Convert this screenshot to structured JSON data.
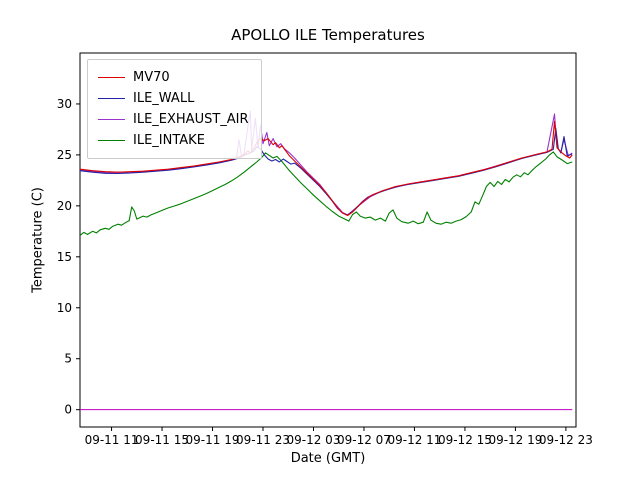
{
  "chart_data": {
    "type": "line",
    "title": "APOLLO ILE Temperatures",
    "xlabel": "Date (GMT)",
    "ylabel": "Temperature (C)",
    "x_axis": {
      "tick_labels": [
        "09-11 11",
        "09-11 15",
        "09-11 19",
        "09-11 23",
        "09-12 03",
        "09-12 07",
        "09-12 11",
        "09-12 15",
        "09-12 19",
        "09-12 23"
      ],
      "tick_hours": [
        2.5,
        6.5,
        10.5,
        14.5,
        18.5,
        22.5,
        26.5,
        30.5,
        34.5,
        38.5
      ],
      "lim": [
        0,
        39.3
      ]
    },
    "y_axis": {
      "ticks": [
        0,
        5,
        10,
        15,
        20,
        25,
        30
      ],
      "lim": [
        -1.7,
        35.0
      ]
    },
    "legend": {
      "position": "upper left",
      "entries": [
        "MV70",
        "ILE_WALL",
        "ILE_EXHAUST_AIR",
        "ILE_INTAKE"
      ]
    },
    "grid": false,
    "zero_line": {
      "y": 0,
      "color": "#c000c0"
    },
    "series": [
      {
        "name": "MV70",
        "color": "#dd0000",
        "points": [
          [
            0,
            23.6
          ],
          [
            1,
            23.45
          ],
          [
            2,
            23.35
          ],
          [
            3,
            23.3
          ],
          [
            4,
            23.35
          ],
          [
            5,
            23.4
          ],
          [
            6,
            23.5
          ],
          [
            7,
            23.6
          ],
          [
            8,
            23.75
          ],
          [
            9,
            23.9
          ],
          [
            10,
            24.1
          ],
          [
            11,
            24.3
          ],
          [
            12,
            24.55
          ],
          [
            12.6,
            24.8
          ],
          [
            13,
            25.0
          ],
          [
            13.3,
            25.4
          ],
          [
            13.5,
            25.2
          ],
          [
            13.8,
            25.7
          ],
          [
            14,
            26.2
          ],
          [
            14.3,
            26.6
          ],
          [
            14.6,
            26.4
          ],
          [
            14.9,
            26.6
          ],
          [
            15.1,
            26.3
          ],
          [
            15.3,
            26.0
          ],
          [
            15.5,
            26.2
          ],
          [
            15.8,
            25.7
          ],
          [
            16,
            25.9
          ],
          [
            16.3,
            25.4
          ],
          [
            16.6,
            24.9
          ],
          [
            17,
            24.4
          ],
          [
            17.5,
            23.8
          ],
          [
            18,
            23.2
          ],
          [
            18.5,
            22.6
          ],
          [
            19,
            22.0
          ],
          [
            19.5,
            21.3
          ],
          [
            20,
            20.5
          ],
          [
            20.4,
            19.8
          ],
          [
            20.8,
            19.3
          ],
          [
            21.2,
            19.05
          ],
          [
            21.6,
            19.4
          ],
          [
            22,
            19.9
          ],
          [
            22.4,
            20.4
          ],
          [
            22.8,
            20.8
          ],
          [
            23.2,
            21.1
          ],
          [
            24,
            21.5
          ],
          [
            25,
            21.9
          ],
          [
            26,
            22.15
          ],
          [
            27,
            22.35
          ],
          [
            28,
            22.55
          ],
          [
            29,
            22.75
          ],
          [
            30,
            22.95
          ],
          [
            31,
            23.25
          ],
          [
            32,
            23.55
          ],
          [
            33,
            23.9
          ],
          [
            34,
            24.3
          ],
          [
            35,
            24.7
          ],
          [
            36,
            25.0
          ],
          [
            37,
            25.3
          ],
          [
            37.4,
            25.55
          ],
          [
            37.6,
            28.3
          ],
          [
            37.8,
            25.7
          ],
          [
            38.1,
            25.3
          ],
          [
            38.5,
            24.9
          ],
          [
            38.8,
            24.7
          ],
          [
            39,
            25.0
          ]
        ]
      },
      {
        "name": "ILE_WALL",
        "color": "#2222aa",
        "points": [
          [
            0,
            23.45
          ],
          [
            1,
            23.3
          ],
          [
            2,
            23.2
          ],
          [
            3,
            23.18
          ],
          [
            4,
            23.22
          ],
          [
            5,
            23.3
          ],
          [
            6,
            23.4
          ],
          [
            7,
            23.5
          ],
          [
            8,
            23.65
          ],
          [
            9,
            23.82
          ],
          [
            10,
            24.0
          ],
          [
            11,
            24.22
          ],
          [
            12,
            24.48
          ],
          [
            12.6,
            24.7
          ],
          [
            13,
            24.95
          ],
          [
            13.4,
            25.15
          ],
          [
            13.8,
            25.4
          ],
          [
            14,
            25.8
          ],
          [
            14.3,
            25.6
          ],
          [
            14.6,
            25.0
          ],
          [
            14.9,
            24.6
          ],
          [
            15.2,
            24.4
          ],
          [
            15.5,
            24.55
          ],
          [
            15.8,
            24.3
          ],
          [
            16.1,
            24.6
          ],
          [
            16.4,
            24.35
          ],
          [
            16.7,
            24.1
          ],
          [
            17,
            24.2
          ],
          [
            17.5,
            23.7
          ],
          [
            18,
            23.1
          ],
          [
            18.5,
            22.5
          ],
          [
            19,
            21.9
          ],
          [
            19.5,
            21.2
          ],
          [
            20,
            20.45
          ],
          [
            20.4,
            19.75
          ],
          [
            20.8,
            19.3
          ],
          [
            21.2,
            19.1
          ],
          [
            21.6,
            19.45
          ],
          [
            22,
            19.95
          ],
          [
            22.4,
            20.45
          ],
          [
            22.8,
            20.85
          ],
          [
            23.2,
            21.1
          ],
          [
            24,
            21.45
          ],
          [
            25,
            21.85
          ],
          [
            26,
            22.1
          ],
          [
            27,
            22.3
          ],
          [
            28,
            22.5
          ],
          [
            29,
            22.7
          ],
          [
            30,
            22.9
          ],
          [
            31,
            23.2
          ],
          [
            32,
            23.5
          ],
          [
            33,
            23.85
          ],
          [
            34,
            24.25
          ],
          [
            35,
            24.65
          ],
          [
            36,
            24.95
          ],
          [
            37,
            25.25
          ],
          [
            37.5,
            25.55
          ],
          [
            37.7,
            27.6
          ],
          [
            37.9,
            25.6
          ],
          [
            38.1,
            25.2
          ],
          [
            38.35,
            26.8
          ],
          [
            38.6,
            24.9
          ],
          [
            39,
            25.1
          ]
        ]
      },
      {
        "name": "ILE_EXHAUST_AIR",
        "color": "#9932cc",
        "points": [
          [
            0,
            23.5
          ],
          [
            2,
            23.28
          ],
          [
            4,
            23.3
          ],
          [
            6,
            23.45
          ],
          [
            8,
            23.7
          ],
          [
            10,
            24.05
          ],
          [
            12,
            24.5
          ],
          [
            12.4,
            24.7
          ],
          [
            12.6,
            26.5
          ],
          [
            12.8,
            24.9
          ],
          [
            13,
            25.1
          ],
          [
            13.3,
            27.8
          ],
          [
            13.5,
            29.3
          ],
          [
            13.6,
            25.5
          ],
          [
            13.9,
            28.6
          ],
          [
            14.1,
            25.7
          ],
          [
            14.3,
            27.9
          ],
          [
            14.5,
            26.1
          ],
          [
            14.8,
            27.2
          ],
          [
            15,
            25.9
          ],
          [
            15.3,
            26.6
          ],
          [
            15.6,
            25.8
          ],
          [
            15.9,
            26.1
          ],
          [
            16.2,
            25.6
          ],
          [
            16.6,
            25.2
          ],
          [
            17,
            24.7
          ],
          [
            17.5,
            24.0
          ],
          [
            18,
            23.3
          ],
          [
            19,
            22.1
          ],
          [
            20,
            20.5
          ],
          [
            20.8,
            19.35
          ],
          [
            21.2,
            19.1
          ],
          [
            22,
            19.95
          ],
          [
            23,
            20.9
          ],
          [
            24,
            21.5
          ],
          [
            26,
            22.15
          ],
          [
            28,
            22.55
          ],
          [
            30,
            22.95
          ],
          [
            32,
            23.55
          ],
          [
            34,
            24.3
          ],
          [
            36,
            25.0
          ],
          [
            37,
            25.3
          ],
          [
            37.6,
            29.0
          ],
          [
            37.8,
            25.7
          ],
          [
            38.1,
            25.3
          ],
          [
            38.35,
            26.5
          ],
          [
            38.7,
            24.9
          ],
          [
            39,
            25.2
          ]
        ]
      },
      {
        "name": "ILE_INTAKE",
        "color": "#008000",
        "points": [
          [
            0,
            17.1
          ],
          [
            0.3,
            17.4
          ],
          [
            0.6,
            17.2
          ],
          [
            1,
            17.5
          ],
          [
            1.3,
            17.35
          ],
          [
            1.6,
            17.65
          ],
          [
            2,
            17.8
          ],
          [
            2.3,
            17.7
          ],
          [
            2.6,
            18.0
          ],
          [
            3,
            18.2
          ],
          [
            3.3,
            18.1
          ],
          [
            3.6,
            18.35
          ],
          [
            3.9,
            18.55
          ],
          [
            4.1,
            19.9
          ],
          [
            4.3,
            19.5
          ],
          [
            4.5,
            18.7
          ],
          [
            5,
            19.0
          ],
          [
            5.3,
            18.9
          ],
          [
            5.6,
            19.1
          ],
          [
            6,
            19.3
          ],
          [
            6.5,
            19.55
          ],
          [
            7,
            19.8
          ],
          [
            7.5,
            20.0
          ],
          [
            8,
            20.2
          ],
          [
            8.5,
            20.45
          ],
          [
            9,
            20.7
          ],
          [
            9.5,
            20.95
          ],
          [
            10,
            21.2
          ],
          [
            10.5,
            21.5
          ],
          [
            11,
            21.8
          ],
          [
            11.5,
            22.1
          ],
          [
            12,
            22.45
          ],
          [
            12.5,
            22.85
          ],
          [
            13,
            23.3
          ],
          [
            13.5,
            23.8
          ],
          [
            14,
            24.3
          ],
          [
            14.4,
            24.75
          ],
          [
            14.7,
            25.2
          ],
          [
            15,
            24.95
          ],
          [
            15.3,
            24.7
          ],
          [
            15.6,
            24.85
          ],
          [
            16,
            24.35
          ],
          [
            16.5,
            23.6
          ],
          [
            17,
            22.9
          ],
          [
            17.5,
            22.25
          ],
          [
            18,
            21.65
          ],
          [
            18.5,
            21.05
          ],
          [
            19,
            20.5
          ],
          [
            19.5,
            19.95
          ],
          [
            20,
            19.45
          ],
          [
            20.5,
            19.0
          ],
          [
            21,
            18.7
          ],
          [
            21.3,
            18.5
          ],
          [
            21.6,
            19.15
          ],
          [
            21.9,
            19.4
          ],
          [
            22.2,
            19.0
          ],
          [
            22.6,
            18.8
          ],
          [
            23,
            18.9
          ],
          [
            23.4,
            18.6
          ],
          [
            23.8,
            18.8
          ],
          [
            24.2,
            18.5
          ],
          [
            24.5,
            19.3
          ],
          [
            24.8,
            19.6
          ],
          [
            25.1,
            18.8
          ],
          [
            25.5,
            18.45
          ],
          [
            26,
            18.3
          ],
          [
            26.4,
            18.5
          ],
          [
            26.8,
            18.25
          ],
          [
            27.2,
            18.4
          ],
          [
            27.5,
            19.4
          ],
          [
            27.8,
            18.6
          ],
          [
            28.2,
            18.3
          ],
          [
            28.6,
            18.2
          ],
          [
            29,
            18.4
          ],
          [
            29.4,
            18.3
          ],
          [
            29.8,
            18.5
          ],
          [
            30.2,
            18.65
          ],
          [
            30.6,
            18.95
          ],
          [
            31,
            19.4
          ],
          [
            31.3,
            20.4
          ],
          [
            31.6,
            20.15
          ],
          [
            31.9,
            21.0
          ],
          [
            32.2,
            21.9
          ],
          [
            32.5,
            22.3
          ],
          [
            32.8,
            21.9
          ],
          [
            33.1,
            22.4
          ],
          [
            33.4,
            22.1
          ],
          [
            33.7,
            22.6
          ],
          [
            34,
            22.35
          ],
          [
            34.3,
            22.8
          ],
          [
            34.6,
            23.05
          ],
          [
            34.9,
            22.85
          ],
          [
            35.2,
            23.25
          ],
          [
            35.5,
            23.05
          ],
          [
            35.8,
            23.45
          ],
          [
            36.1,
            23.8
          ],
          [
            36.5,
            24.2
          ],
          [
            36.9,
            24.6
          ],
          [
            37.2,
            25.0
          ],
          [
            37.5,
            25.3
          ],
          [
            37.8,
            24.8
          ],
          [
            38.2,
            24.5
          ],
          [
            38.6,
            24.15
          ],
          [
            39,
            24.3
          ]
        ]
      }
    ]
  }
}
